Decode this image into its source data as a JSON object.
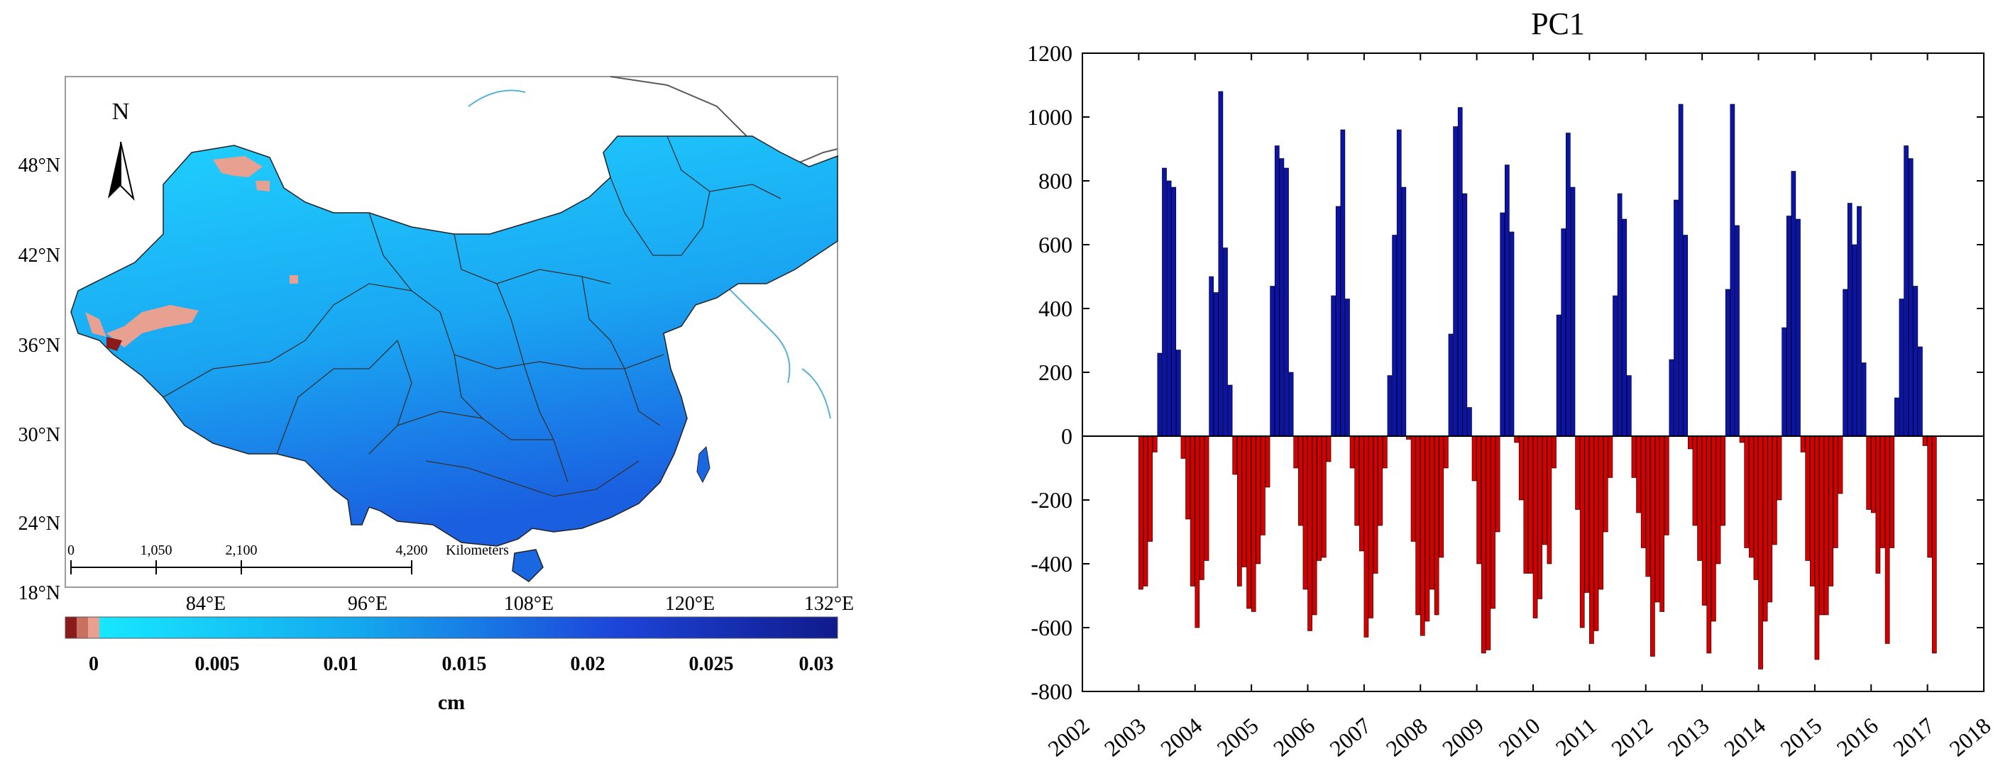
{
  "map": {
    "north_label": "N",
    "lat_labels": [
      "48°N",
      "42°N",
      "36°N",
      "30°N",
      "24°N",
      "18°N"
    ],
    "lon_labels": [
      "84°E",
      "96°E",
      "108°E",
      "120°E",
      "132°E"
    ],
    "scale_bar": {
      "ticks": [
        "0",
        "1,050",
        "2,100",
        "4,200"
      ],
      "unit": "Kilometers"
    },
    "colorbar": {
      "tick_labels": [
        "0",
        "0.005",
        "0.01",
        "0.015",
        "0.02",
        "0.025",
        "0.03"
      ],
      "unit_label": "cm",
      "colors": {
        "negative": "#8b1a1a",
        "zero": "#e8a090",
        "low": "#17e7ff",
        "high": "#101a8c"
      }
    }
  },
  "chart_data": {
    "type": "bar",
    "title": "PC1",
    "xlabel": "",
    "ylabel": "",
    "ylim": [
      -800,
      1200
    ],
    "yticks": [
      -800,
      -600,
      -400,
      -200,
      0,
      200,
      400,
      600,
      800,
      1000,
      1200
    ],
    "xlim": [
      2002,
      2018
    ],
    "xticks": [
      "2002",
      "2003",
      "2004",
      "2005",
      "2006",
      "2007",
      "2008",
      "2009",
      "2010",
      "2011",
      "2012",
      "2013",
      "2014",
      "2015",
      "2016",
      "2017",
      "2018"
    ],
    "x_start": 2003.0,
    "step_months": 1,
    "colors": {
      "positive": "#0b13a8",
      "negative": "#d40000"
    },
    "values": [
      -480,
      -470,
      -330,
      -50,
      260,
      840,
      800,
      780,
      270,
      -70,
      -260,
      -470,
      -600,
      -450,
      -390,
      500,
      450,
      1080,
      590,
      160,
      -120,
      -470,
      -410,
      -540,
      -550,
      -400,
      -310,
      -160,
      470,
      910,
      870,
      840,
      200,
      -100,
      -280,
      -480,
      -610,
      -560,
      -390,
      -380,
      -80,
      440,
      720,
      960,
      430,
      -100,
      -280,
      -360,
      -630,
      -570,
      -430,
      -280,
      -100,
      190,
      630,
      960,
      780,
      -10,
      -330,
      -560,
      -625,
      -580,
      -480,
      -560,
      -380,
      -100,
      320,
      970,
      1030,
      760,
      90,
      -140,
      -400,
      -680,
      -670,
      -540,
      -300,
      700,
      850,
      640,
      -20,
      -200,
      -430,
      -430,
      -570,
      -510,
      -340,
      -400,
      -100,
      380,
      650,
      950,
      780,
      -230,
      -600,
      -490,
      -650,
      -610,
      -480,
      -300,
      -130,
      440,
      760,
      680,
      190,
      -130,
      -240,
      -350,
      -440,
      -690,
      -520,
      -550,
      -310,
      240,
      740,
      1040,
      630,
      -40,
      -280,
      -390,
      -530,
      -680,
      -580,
      -400,
      -280,
      460,
      1040,
      660,
      -20,
      -350,
      -380,
      -450,
      -730,
      -580,
      -520,
      -340,
      -200,
      340,
      690,
      830,
      680,
      -50,
      -390,
      -470,
      -700,
      -560,
      -560,
      -470,
      -350,
      -180,
      460,
      730,
      600,
      720,
      230,
      -230,
      -240,
      -430,
      -350,
      -650,
      -350,
      120,
      430,
      910,
      870,
      470,
      280,
      -30,
      -380,
      -680
    ]
  }
}
